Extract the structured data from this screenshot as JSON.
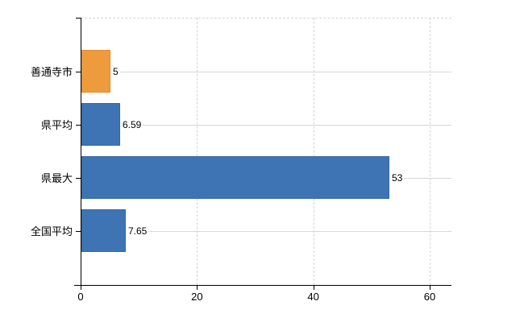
{
  "chart_data": {
    "type": "bar",
    "orientation": "horizontal",
    "title": "",
    "xlabel": "",
    "ylabel": "",
    "categories": [
      "善通寺市",
      "県平均",
      "県最大",
      "全国平均"
    ],
    "values": [
      5,
      6.59,
      53,
      7.65
    ],
    "value_labels": [
      "5",
      "6.59",
      "53",
      "7.65"
    ],
    "bar_colors": [
      "#EE9B3D",
      "#3E74B4",
      "#3E74B4",
      "#3E74B4"
    ],
    "bar_border_colors": [
      "#E1882B",
      "#36689F",
      "#36689F",
      "#36689F"
    ],
    "xlim": [
      0,
      60
    ],
    "x_ticks": [
      "0",
      "20",
      "40",
      "60"
    ],
    "x_tick_values": [
      0,
      20,
      40,
      60
    ],
    "legend": "none",
    "grid": {
      "vertical_style": "dashed",
      "horizontal_style": "solid",
      "color": "#D8D8D8"
    },
    "colors": {
      "background": "#FFFFFF",
      "axis": "#000000",
      "highlight_bar": "#EE9B3D",
      "default_bar": "#3E74B4"
    }
  }
}
